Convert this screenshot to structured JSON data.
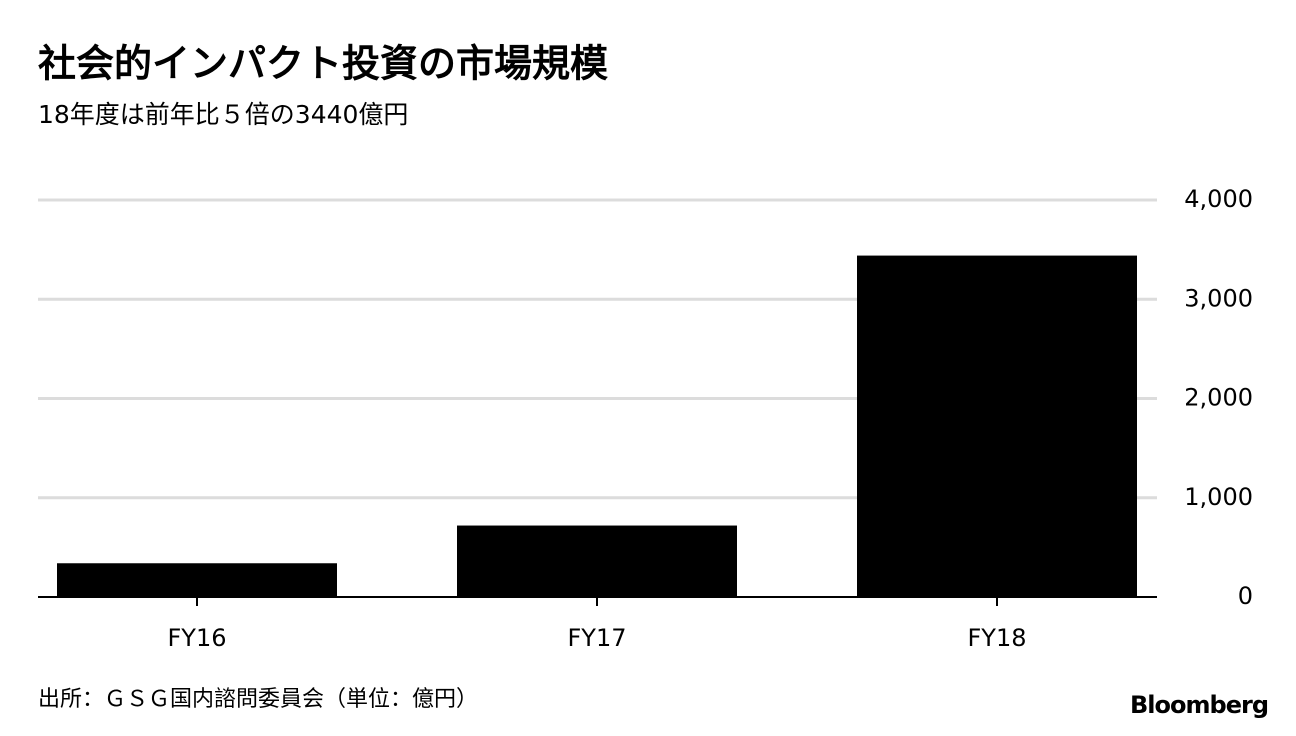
{
  "chart_data": {
    "type": "bar",
    "title": "社会的インパクト投資の市場規模",
    "subtitle": "18年度は前年比５倍の3440億円",
    "categories": [
      "FY16",
      "FY17",
      "FY18"
    ],
    "values": [
      340,
      720,
      3440
    ],
    "color": "#000000",
    "ylim": [
      0,
      4000
    ],
    "yticks": [
      0,
      {
        "value": 1000,
        "label": "1,000"
      },
      {
        "value": 2000,
        "label": "2,000"
      },
      {
        "value": 3000,
        "label": "3,000"
      },
      {
        "value": 4000,
        "label": "4,000"
      }
    ],
    "grid": true,
    "source": "出所：ＧＳＧ国内諮問委員会（単位：億円）",
    "brand": "Bloomberg"
  }
}
